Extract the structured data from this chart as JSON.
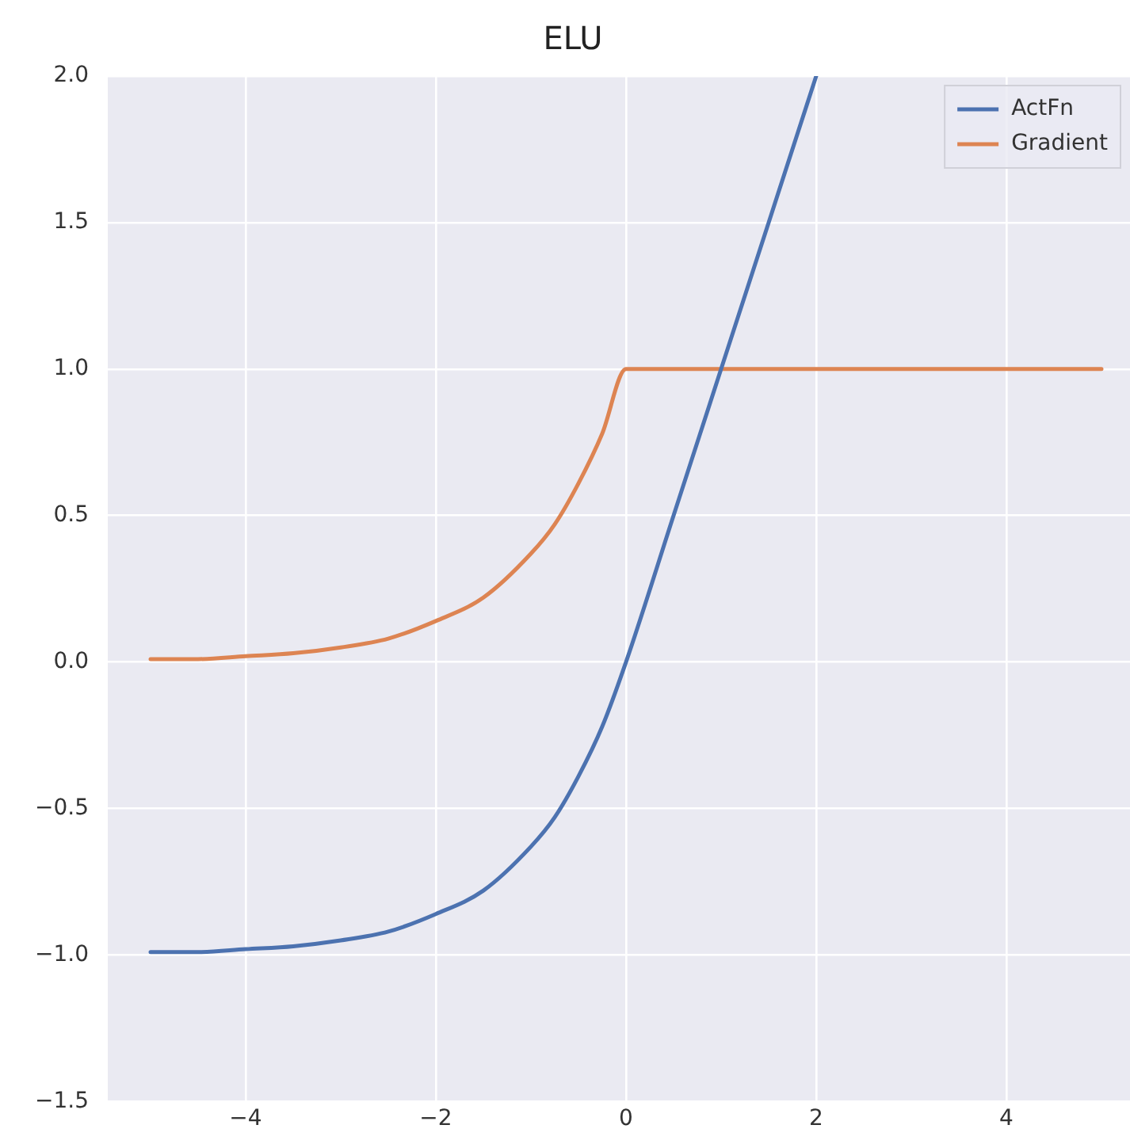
{
  "chart_data": {
    "type": "line",
    "title": "ELU",
    "series": [
      {
        "name": "ActFn",
        "color": "#4c72b0",
        "x": [
          -5,
          -4.5,
          -4,
          -3.5,
          -3,
          -2.5,
          -2,
          -1.5,
          -1,
          -0.75,
          -0.5,
          -0.25,
          0,
          0.5,
          1,
          1.5,
          2
        ],
        "values": [
          -0.99,
          -0.99,
          -0.98,
          -0.97,
          -0.95,
          -0.92,
          -0.86,
          -0.78,
          -0.63,
          -0.53,
          -0.39,
          -0.22,
          0,
          0.5,
          1,
          1.5,
          2
        ]
      },
      {
        "name": "Gradient",
        "color": "#dd8452",
        "x": [
          -5,
          -4.5,
          -4,
          -3.5,
          -3,
          -2.5,
          -2,
          -1.5,
          -1,
          -0.75,
          -0.5,
          -0.25,
          0,
          5
        ],
        "values": [
          0.01,
          0.01,
          0.02,
          0.03,
          0.05,
          0.08,
          0.14,
          0.22,
          0.37,
          0.47,
          0.61,
          0.78,
          1,
          1
        ]
      }
    ],
    "xlim": [
      -5.45,
      5.3
    ],
    "ylim": [
      -1.5,
      2.0
    ],
    "xticks": [
      {
        "value": -4,
        "label": "−4"
      },
      {
        "value": -2,
        "label": "−2"
      },
      0,
      2,
      4
    ],
    "yticks": [
      {
        "value": -1.5,
        "label": "−1.5"
      },
      {
        "value": -1,
        "label": "−1.0"
      },
      {
        "value": -0.5,
        "label": "−0.5"
      },
      {
        "value": 0,
        "label": "0.0"
      },
      {
        "value": 0.5,
        "label": "0.5"
      },
      {
        "value": 1,
        "label": "1.0"
      },
      {
        "value": 1.5,
        "label": "1.5"
      },
      {
        "value": 2,
        "label": "2.0"
      }
    ],
    "grid": true,
    "legend": "top right",
    "marker": "none",
    "line_style": "solid"
  }
}
